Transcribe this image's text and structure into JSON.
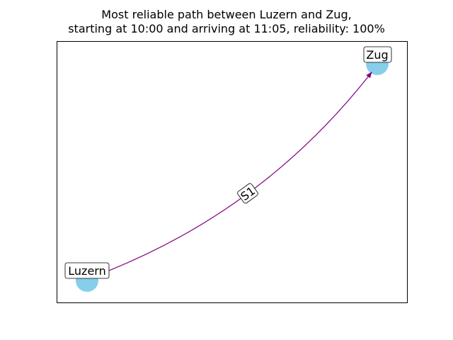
{
  "title": {
    "line1": "Most reliable path between Luzern and Zug,",
    "line2": "starting at 10:00 and arriving at 11:05, reliability: 100%"
  },
  "graph": {
    "nodes": [
      {
        "id": "luzern",
        "label": "Luzern"
      },
      {
        "id": "zug",
        "label": "Zug"
      }
    ],
    "edges": [
      {
        "from": "luzern",
        "to": "zug",
        "label": "S1"
      }
    ]
  },
  "colors": {
    "node": "#87ceeb",
    "edge": "#800080",
    "frame": "#000000"
  }
}
